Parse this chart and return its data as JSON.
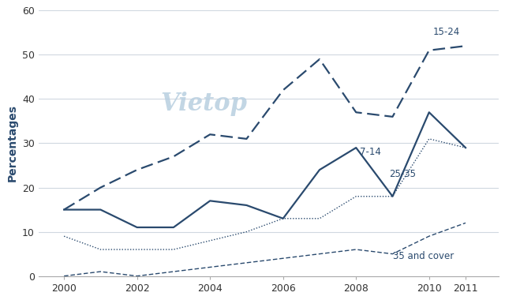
{
  "years": [
    2000,
    2001,
    2002,
    2003,
    2004,
    2005,
    2006,
    2007,
    2008,
    2009,
    2010,
    2011
  ],
  "age_15_24": [
    15,
    20,
    24,
    27,
    32,
    31,
    42,
    49,
    37,
    36,
    51,
    52
  ],
  "age_7_14": [
    15,
    15,
    11,
    11,
    17,
    16,
    13,
    24,
    29,
    18,
    37,
    29
  ],
  "age_25_35": [
    9,
    6,
    6,
    6,
    8,
    10,
    13,
    13,
    18,
    18,
    31,
    29
  ],
  "age_35up": [
    0,
    1,
    0,
    1,
    2,
    3,
    4,
    5,
    6,
    5,
    9,
    12
  ],
  "line_color": "#2a4a6e",
  "ylabel": "Percentages",
  "ylim": [
    0,
    60
  ],
  "yticks": [
    0,
    10,
    20,
    30,
    40,
    50,
    60
  ],
  "xticks": [
    2000,
    2002,
    2004,
    2006,
    2008,
    2010,
    2011
  ],
  "label_15_24": "15-24",
  "label_7_14": "7-14",
  "label_25_35": "25-35",
  "label_35up": "35 and cover",
  "watermark": "Vietop",
  "watermark_color": "#b8cfe0",
  "figwidth": 6.4,
  "figheight": 3.8
}
